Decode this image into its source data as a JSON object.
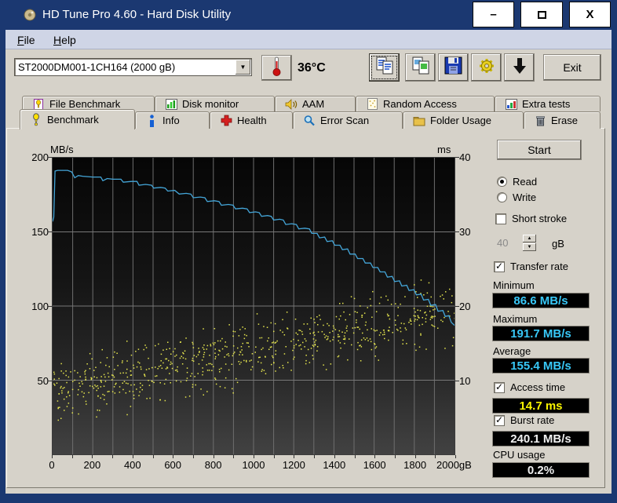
{
  "window": {
    "title": "HD Tune Pro 4.60 - Hard Disk Utility",
    "app_icon": "hard-disk-icon",
    "buttons": {
      "minimize": "–",
      "maximize": "□",
      "close": "X"
    }
  },
  "menu": {
    "file_label": "File",
    "help_label": "Help"
  },
  "toolbar": {
    "drive_selected": "ST2000DM001-1CH164 (2000 gB)",
    "temperature": "36°C",
    "buttons": [
      {
        "name": "copy-text-button",
        "icon": "copy-text-icon"
      },
      {
        "name": "copy-screenshot-button",
        "icon": "copy-image-icon"
      },
      {
        "name": "save-button",
        "icon": "save-icon"
      },
      {
        "name": "options-button",
        "icon": "options-icon"
      },
      {
        "name": "save-results-button",
        "icon": "download-arrow-icon"
      }
    ],
    "exit_label": "Exit"
  },
  "tabs": {
    "back_row": [
      {
        "label": "File Benchmark",
        "icon": "file-benchmark-icon"
      },
      {
        "label": "Disk monitor",
        "icon": "disk-monitor-icon"
      },
      {
        "label": "AAM",
        "icon": "aam-icon"
      },
      {
        "label": "Random Access",
        "icon": "random-access-icon"
      },
      {
        "label": "Extra tests",
        "icon": "extra-tests-icon"
      }
    ],
    "front_row": [
      {
        "label": "Benchmark",
        "icon": "benchmark-icon",
        "selected": true
      },
      {
        "label": "Info",
        "icon": "info-icon"
      },
      {
        "label": "Health",
        "icon": "health-icon"
      },
      {
        "label": "Error Scan",
        "icon": "error-scan-icon"
      },
      {
        "label": "Folder Usage",
        "icon": "folder-usage-icon"
      },
      {
        "label": "Erase",
        "icon": "erase-icon"
      }
    ],
    "selected": "Benchmark"
  },
  "controls": {
    "start_label": "Start",
    "read_label": "Read",
    "write_label": "Write",
    "read_selected": true,
    "short_stroke_label": "Short stroke",
    "short_stroke_checked": false,
    "short_stroke_value": "40",
    "short_stroke_unit": "gB",
    "transfer_rate_label": "Transfer rate",
    "transfer_rate_checked": true,
    "minimum_label": "Minimum",
    "minimum_value": "86.6 MB/s",
    "maximum_label": "Maximum",
    "maximum_value": "191.7 MB/s",
    "average_label": "Average",
    "average_value": "155.4 MB/s",
    "access_time_label": "Access time",
    "access_time_checked": true,
    "access_time_value": "14.7 ms",
    "burst_rate_label": "Burst rate",
    "burst_rate_checked": true,
    "burst_rate_value": "240.1 MB/s",
    "cpu_usage_label": "CPU usage",
    "cpu_usage_value": "0.2%"
  },
  "colors": {
    "titlebar": "#1b3871",
    "client": "#d6d2c9",
    "menubar": "#cfd5e6",
    "value_cyan": "#38c8f8",
    "value_yellow": "#f8f400",
    "value_white": "#f0f0f0",
    "line_blue": "#44a6d9",
    "scatter_yellow": "#e6e64e"
  },
  "chart_data": {
    "type": "line",
    "title": "Benchmark transfer rate and access time vs disk position",
    "x_axis": {
      "unit": "gB",
      "range": [
        0,
        2000
      ],
      "ticks": [
        0,
        200,
        400,
        600,
        800,
        1000,
        1200,
        1400,
        1600,
        1800,
        2000
      ],
      "gridline_step": 100
    },
    "y_axis_left": {
      "label": "MB/s",
      "range": [
        0,
        200
      ],
      "ticks": [
        200,
        150,
        100,
        50
      ]
    },
    "y_axis_right": {
      "label": "ms",
      "range": [
        0,
        40
      ],
      "ticks": [
        40,
        30,
        20,
        10
      ]
    },
    "legend": "none",
    "grid": true,
    "series": [
      {
        "name": "transfer-rate",
        "type": "line",
        "axis": "left",
        "unit": "MB/s",
        "color": "#44a6d9",
        "points": [
          [
            0,
            157
          ],
          [
            6,
            160
          ],
          [
            12,
            191
          ],
          [
            25,
            191.5
          ],
          [
            75,
            191.5
          ],
          [
            95,
            190.5
          ],
          [
            110,
            186.5
          ],
          [
            128,
            188
          ],
          [
            150,
            187.5
          ],
          [
            200,
            187
          ],
          [
            240,
            187
          ],
          [
            250,
            184.5
          ],
          [
            272,
            186
          ],
          [
            300,
            185.5
          ],
          [
            340,
            185.5
          ],
          [
            352,
            183.5
          ],
          [
            392,
            184
          ],
          [
            420,
            184
          ],
          [
            430,
            181.5
          ],
          [
            462,
            182
          ],
          [
            492,
            181.5
          ],
          [
            503,
            179.5
          ],
          [
            538,
            180
          ],
          [
            560,
            179.5
          ],
          [
            573,
            177.5
          ],
          [
            608,
            178
          ],
          [
            630,
            175.5
          ],
          [
            665,
            176
          ],
          [
            688,
            175.5
          ],
          [
            700,
            173
          ],
          [
            735,
            173.5
          ],
          [
            758,
            173
          ],
          [
            770,
            170.5
          ],
          [
            805,
            171
          ],
          [
            828,
            170.5
          ],
          [
            840,
            168
          ],
          [
            875,
            168.5
          ],
          [
            898,
            168
          ],
          [
            910,
            165.5
          ],
          [
            945,
            166
          ],
          [
            968,
            165.5
          ],
          [
            980,
            163
          ],
          [
            1010,
            163.5
          ],
          [
            1028,
            163
          ],
          [
            1040,
            160.5
          ],
          [
            1070,
            161
          ],
          [
            1088,
            160.5
          ],
          [
            1100,
            158
          ],
          [
            1130,
            158.5
          ],
          [
            1148,
            158
          ],
          [
            1160,
            155
          ],
          [
            1190,
            155.5
          ],
          [
            1213,
            155
          ],
          [
            1225,
            152
          ],
          [
            1255,
            152.5
          ],
          [
            1278,
            152
          ],
          [
            1290,
            149
          ],
          [
            1316,
            149
          ],
          [
            1328,
            146
          ],
          [
            1354,
            146.5
          ],
          [
            1366,
            143.5
          ],
          [
            1392,
            144
          ],
          [
            1404,
            141
          ],
          [
            1430,
            141
          ],
          [
            1442,
            138
          ],
          [
            1468,
            138.5
          ],
          [
            1480,
            135
          ],
          [
            1506,
            135
          ],
          [
            1518,
            132
          ],
          [
            1544,
            132
          ],
          [
            1556,
            129
          ],
          [
            1582,
            129
          ],
          [
            1594,
            126
          ],
          [
            1618,
            126
          ],
          [
            1630,
            123
          ],
          [
            1654,
            123
          ],
          [
            1666,
            119.5
          ],
          [
            1690,
            120
          ],
          [
            1702,
            116.5
          ],
          [
            1726,
            117
          ],
          [
            1738,
            113.5
          ],
          [
            1762,
            114
          ],
          [
            1774,
            110.5
          ],
          [
            1798,
            111
          ],
          [
            1810,
            107.5
          ],
          [
            1834,
            108
          ],
          [
            1846,
            104
          ],
          [
            1870,
            104.5
          ],
          [
            1882,
            100.5
          ],
          [
            1906,
            101
          ],
          [
            1918,
            96.5
          ],
          [
            1942,
            97
          ],
          [
            1954,
            93
          ],
          [
            1972,
            93.5
          ],
          [
            1984,
            89
          ],
          [
            2000,
            87
          ]
        ],
        "stats": {
          "minimum": 86.6,
          "maximum": 191.7,
          "average": 155.4
        }
      },
      {
        "name": "access-time",
        "type": "scatter",
        "axis": "right",
        "unit": "ms",
        "color": "#e6e64e",
        "point_count": 700,
        "seed": 77,
        "trend": {
          "start_ms": 8.5,
          "end_ms": 19.5,
          "jitter_ms": 5.2,
          "min_ms": 3.6,
          "max_ms": 24.6
        },
        "stats": {
          "average": 14.7
        }
      }
    ]
  }
}
